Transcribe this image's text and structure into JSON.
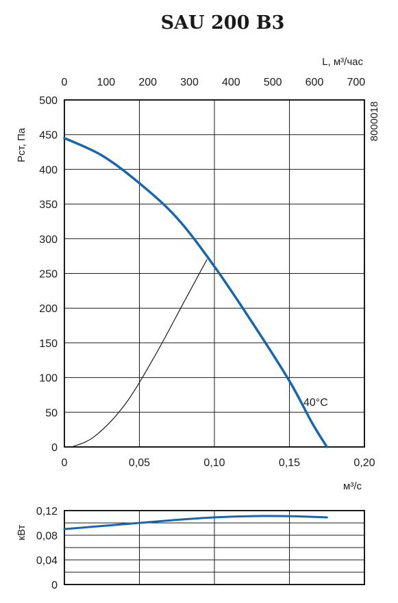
{
  "title": "SAU 200 B3",
  "code": "8000018",
  "chart_data": [
    {
      "type": "line",
      "ylabel": "Pст, Па",
      "xlabel": "м³/с",
      "x2label": "L, м³/час",
      "xlim": [
        0,
        0.2
      ],
      "ylim": [
        0,
        500
      ],
      "x2lim": [
        0,
        720
      ],
      "xticks": [
        "0",
        "0,05",
        "0,10",
        "0,15",
        "0,20"
      ],
      "yticks": [
        "0",
        "50",
        "100",
        "150",
        "200",
        "250",
        "300",
        "350",
        "400",
        "450",
        "500"
      ],
      "x2ticks": [
        "0",
        "100",
        "200",
        "300",
        "400",
        "500",
        "600",
        "700"
      ],
      "grid": true,
      "annotation": "40°C",
      "series": [
        {
          "role": "fan-curve",
          "color": "#1565b0",
          "x": [
            0,
            0.025,
            0.05,
            0.075,
            0.1,
            0.125,
            0.15,
            0.165,
            0.175
          ],
          "y": [
            445,
            420,
            380,
            330,
            260,
            180,
            95,
            35,
            0
          ]
        },
        {
          "role": "system-curve",
          "color": "#1a1a1a",
          "x": [
            0.005,
            0.02,
            0.04,
            0.06,
            0.08,
            0.095
          ],
          "y": [
            0,
            15,
            60,
            130,
            210,
            270
          ]
        }
      ]
    },
    {
      "type": "line",
      "ylabel": "кВт",
      "xlim": [
        0,
        0.2
      ],
      "ylim": [
        0,
        0.12
      ],
      "yticks": [
        "0",
        "0,04",
        "0,08",
        "0,12"
      ],
      "grid": true,
      "series": [
        {
          "role": "power-curve",
          "color": "#1565b0",
          "x": [
            0,
            0.025,
            0.05,
            0.075,
            0.1,
            0.125,
            0.15,
            0.175
          ],
          "y": [
            0.09,
            0.095,
            0.1,
            0.105,
            0.109,
            0.111,
            0.111,
            0.109
          ]
        }
      ]
    }
  ]
}
